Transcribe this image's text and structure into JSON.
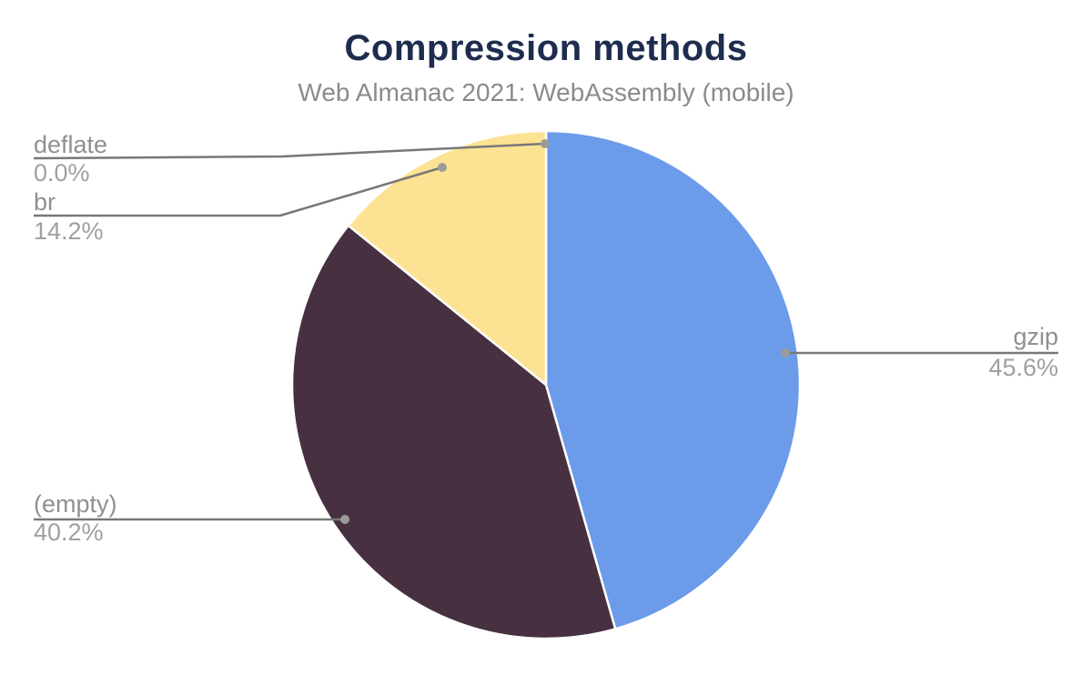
{
  "chart_data": {
    "type": "pie",
    "title": "Compression methods",
    "subtitle": "Web Almanac 2021: WebAssembly (mobile)",
    "unit": "%",
    "legend": "none",
    "label_style": "outside-with-leader-lines",
    "start_angle_deg": 0,
    "direction": "clockwise",
    "total_pct": 100.0,
    "slices": [
      {
        "label": "gzip",
        "value": 45.6,
        "pct_label": "45.6%",
        "color": "#6C9BE9"
      },
      {
        "label": "(empty)",
        "value": 40.2,
        "pct_label": "40.2%",
        "color": "#473141"
      },
      {
        "label": "br",
        "value": 14.2,
        "pct_label": "14.2%",
        "color": "#FCE393"
      },
      {
        "label": "deflate",
        "value": 0.0,
        "pct_label": "0.0%",
        "color": null
      }
    ],
    "style": {
      "background": "#FFFFFF",
      "title_color": "#1E2C4E",
      "subtitle_color": "#8B8B8B",
      "label_name_color": "#8F9092",
      "label_pct_color": "#9DA0A3",
      "leader_line_color": "#787878",
      "leader_dot_color": "#9B9B9B",
      "slice_border_color": "#FFFFFF"
    }
  }
}
